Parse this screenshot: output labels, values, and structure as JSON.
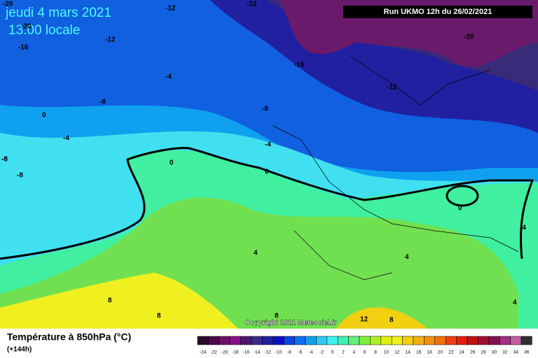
{
  "header": {
    "date": "jeudi 4 mars 2021",
    "time": "13:00 locale",
    "run": "Run UKMO 12h du 26/02/2021"
  },
  "map": {
    "copyright": "Copyright 2021 Meteociel.fr",
    "contour_labels": [
      "-20",
      "-12",
      "-12",
      "-20",
      "-12",
      "-16",
      "-20",
      "-16",
      "-4",
      "-12",
      "-8",
      "-8",
      "0",
      "-4",
      "-8",
      "-4",
      "0",
      "0",
      "-8",
      "-8",
      "0",
      "-4",
      "4",
      "4",
      "8",
      "8",
      "8",
      "12",
      "8",
      "4"
    ]
  },
  "footer": {
    "title": "Température à 850hPa (°C)",
    "lead": "(+144h)"
  },
  "colorbar": {
    "ticks": [
      -24,
      -22,
      -20,
      -18,
      -16,
      -14,
      -12,
      -10,
      -8,
      -6,
      -4,
      -2,
      0,
      2,
      4,
      6,
      8,
      10,
      12,
      14,
      16,
      18,
      20,
      22,
      24,
      26,
      28,
      30,
      32,
      34,
      36
    ],
    "colors": [
      "#2a0a2a",
      "#4a0a4a",
      "#6a106a",
      "#8a108a",
      "#4a1a6a",
      "#3a2a8a",
      "#2020a0",
      "#1010c0",
      "#1040e0",
      "#1070f0",
      "#10a0f0",
      "#30c8f0",
      "#40f0f0",
      "#40f0b0",
      "#60f080",
      "#80f040",
      "#b0f020",
      "#e0f010",
      "#f0f020",
      "#f0d010",
      "#f0b010",
      "#f09010",
      "#f07010",
      "#f04010",
      "#e02010",
      "#c01010",
      "#a01030",
      "#801050",
      "#a03080",
      "#c060a0",
      "#303030"
    ]
  }
}
